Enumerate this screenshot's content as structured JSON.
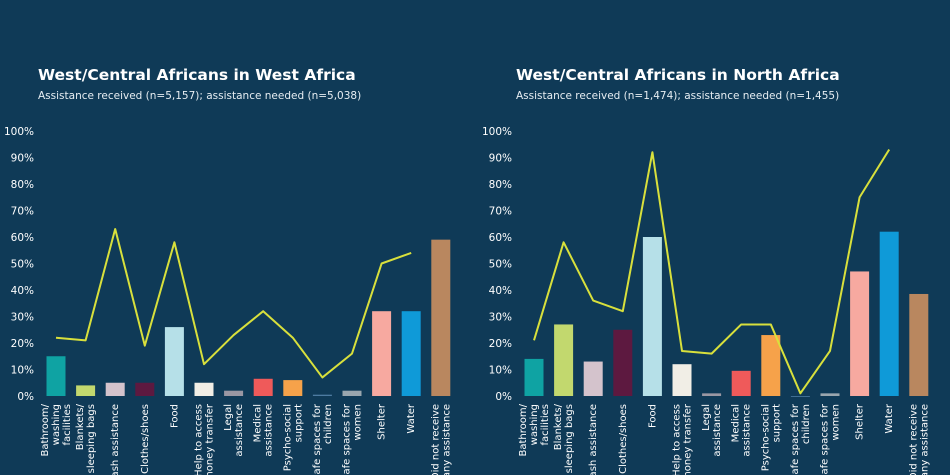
{
  "colors": {
    "background": "#0f3a57",
    "needed_line": "#d8e03c",
    "axis_text": "#ffffff"
  },
  "chart_data": [
    {
      "type": "bar",
      "title": "West/Central Africans in West Africa",
      "subtitle": "Assistance received (n=5,157); assistance needed (n=5,038)",
      "ylim": [
        0,
        100
      ],
      "yticks": [
        "0%",
        "10%",
        "20%",
        "30%",
        "40%",
        "50%",
        "60%",
        "70%",
        "80%",
        "90%",
        "100%"
      ],
      "categories": [
        "Bathroom/ washing facilities",
        "Blankets/ sleeping bags",
        "Cash assistance",
        "Clothes/shoes",
        "Food",
        "Help to access money transfer",
        "Legal assistance",
        "Medical assistance",
        "Psycho-social support",
        "Safe spaces for children",
        "Safe spaces for women",
        "Shelter",
        "Water",
        "Did not receive any assistance"
      ],
      "series": [
        {
          "values": [
            15,
            4,
            5,
            5,
            26,
            5,
            2,
            6.5,
            6,
            0.5,
            2,
            32,
            32,
            59
          ]
        },
        {
          "values": [
            22,
            21,
            63,
            19,
            58,
            12,
            23,
            32,
            22,
            7,
            16,
            50,
            54,
            null
          ]
        }
      ],
      "bar_colors": [
        "#0fa3a3",
        "#c2d86e",
        "#d4c3cc",
        "#5d1940",
        "#b6e0e8",
        "#f1eee6",
        "#9a97a3",
        "#ef5a5a",
        "#f6a24a",
        "#4d7ba1",
        "#9aa6ae",
        "#f7a9a0",
        "#0f9ad8",
        "#b9875f"
      ]
    },
    {
      "type": "bar",
      "title": "West/Central Africans in North Africa",
      "subtitle": "Assistance received (n=1,474); assistance needed (n=1,455)",
      "ylim": [
        0,
        100
      ],
      "yticks": [
        "0%",
        "10%",
        "20%",
        "30%",
        "40%",
        "50%",
        "60%",
        "70%",
        "80%",
        "90%",
        "100%"
      ],
      "categories": [
        "Bathroom/ washing facilities",
        "Blankets/ sleeping bags",
        "Cash assistance",
        "Clothes/shoes",
        "Food",
        "Help to access money transfer",
        "Legal assistance",
        "Medical assistance",
        "Psycho-social support",
        "Safe spaces for children",
        "Safe spaces for women",
        "Shelter",
        "Water",
        "Did not receive any assistance"
      ],
      "series": [
        {
          "values": [
            14,
            27,
            13,
            25,
            60,
            12,
            1,
            9.5,
            23,
            0,
            1,
            47,
            62,
            38.5
          ]
        },
        {
          "values": [
            21,
            58,
            36,
            32,
            92,
            17,
            16,
            27,
            27,
            1,
            17,
            75,
            93,
            null
          ]
        }
      ],
      "bar_colors": [
        "#0fa3a3",
        "#c2d86e",
        "#d4c3cc",
        "#5d1940",
        "#b6e0e8",
        "#f1eee6",
        "#9a97a3",
        "#ef5a5a",
        "#f6a24a",
        "#4d7ba1",
        "#9aa6ae",
        "#f7a9a0",
        "#0f9ad8",
        "#b9875f"
      ]
    }
  ]
}
